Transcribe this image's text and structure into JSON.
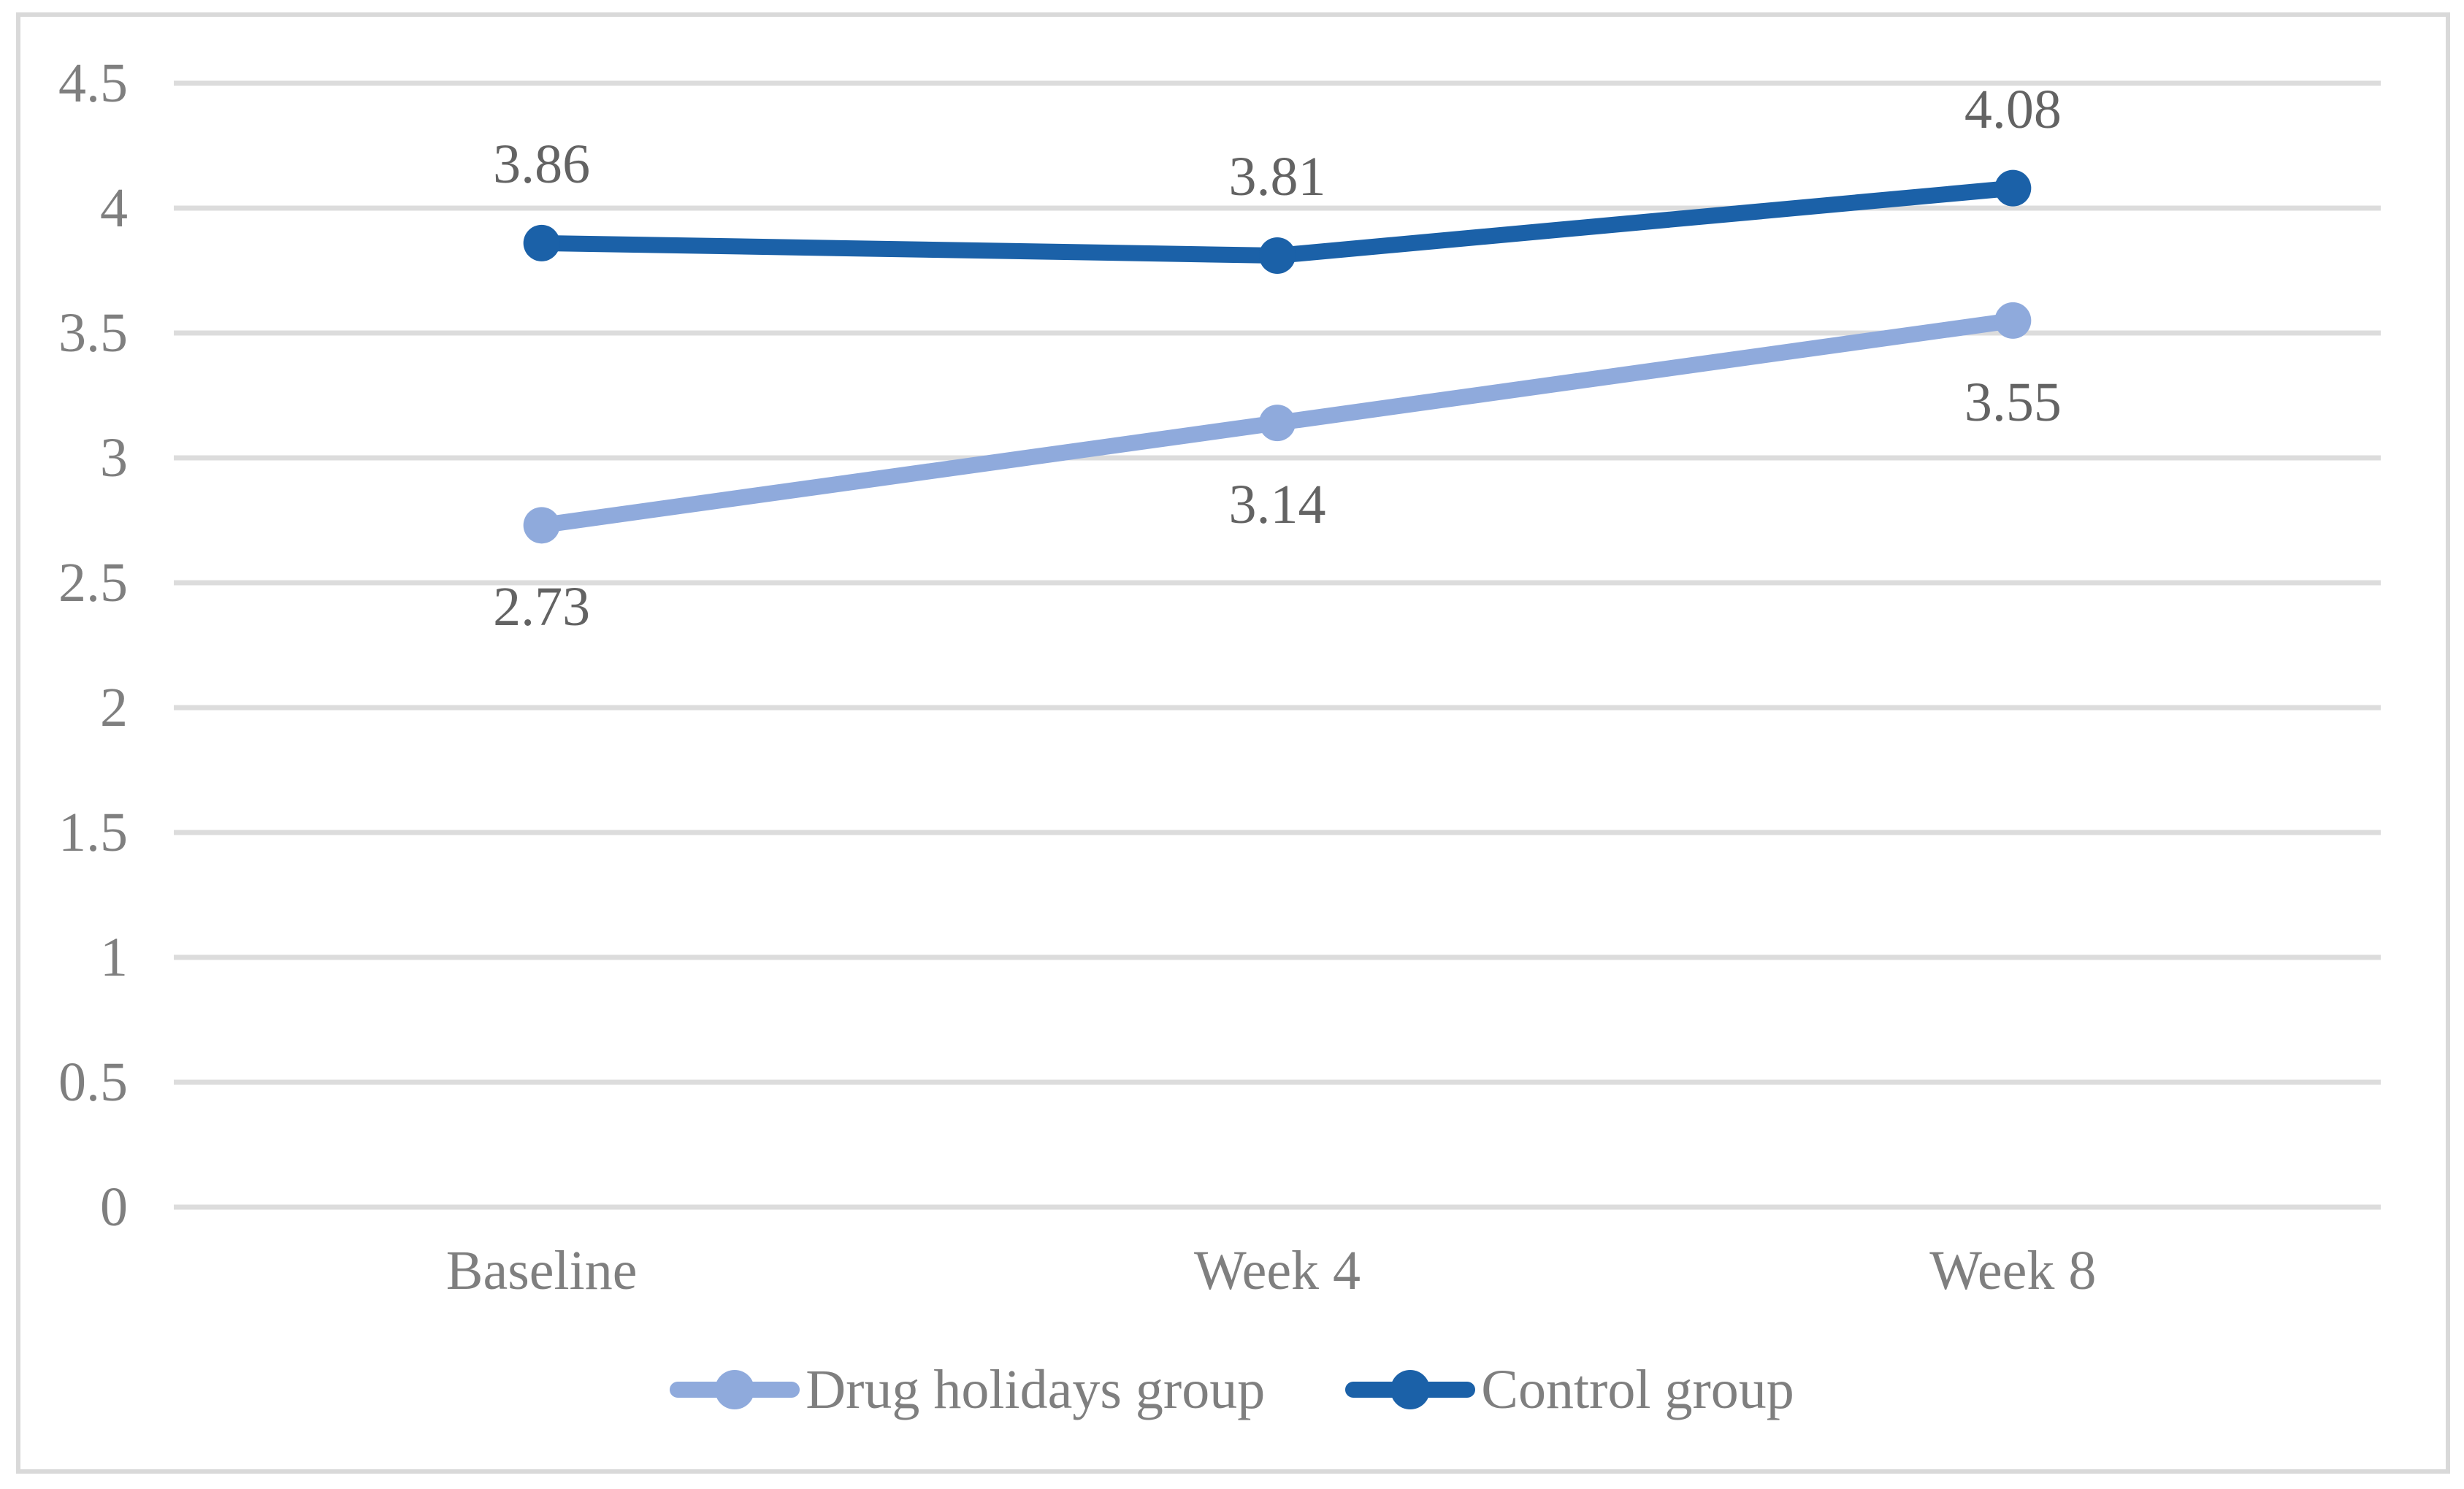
{
  "chart_data": {
    "type": "line",
    "categories": [
      "Baseline",
      "Week 4",
      "Week 8"
    ],
    "series": [
      {
        "name": "Drug holidays group",
        "values": [
          2.73,
          3.14,
          3.55
        ],
        "labels": [
          "2.73",
          "3.14",
          "3.55"
        ],
        "color": "#8FAADC",
        "label_position": "below"
      },
      {
        "name": "Control group",
        "values": [
          3.86,
          3.81,
          4.08
        ],
        "labels": [
          "3.86",
          "3.81",
          "4.08"
        ],
        "color": "#1B61A8",
        "label_position": "above"
      }
    ],
    "title": "",
    "xlabel": "",
    "ylabel": "",
    "y_axis": {
      "min": 0,
      "max": 4.5,
      "step": 0.5,
      "tick_labels_top_to_bottom": [
        "4.5",
        "4",
        "3.5",
        "3",
        "2.5",
        "2",
        "1.5",
        "1",
        "0.5",
        "0"
      ]
    },
    "grid": true,
    "legend_position": "bottom"
  },
  "colors": {
    "gridline": "#dcdcdc",
    "figure_border": "#d9d9d9",
    "axis_text": "#7f7f7f",
    "data_label_text": "#636363"
  }
}
